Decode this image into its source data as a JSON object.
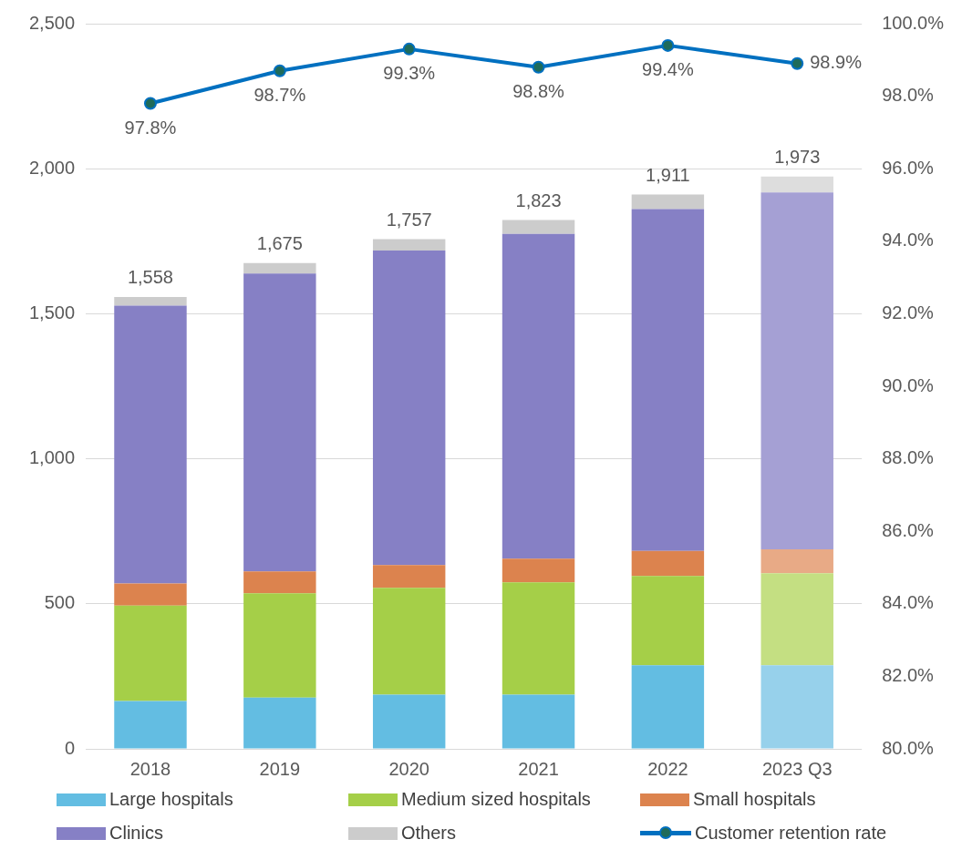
{
  "chart_data": {
    "type": "bar",
    "stacked": true,
    "categories": [
      "2018",
      "2019",
      "2020",
      "2021",
      "2022",
      "2023 Q3"
    ],
    "series": [
      {
        "name": "Large hospitals",
        "color": "#63bde2",
        "colors": [
          "#63bde2",
          "#63bde2",
          "#63bde2",
          "#63bde2",
          "#63bde2",
          "#97d1eb"
        ],
        "values": [
          165,
          177,
          187,
          187,
          288,
          288
        ]
      },
      {
        "name": "Medium sized hospitals",
        "color": "#a5cf48",
        "colors": [
          "#a5cf48",
          "#a5cf48",
          "#a5cf48",
          "#a5cf48",
          "#a5cf48",
          "#c4df82"
        ],
        "values": [
          329,
          359,
          368,
          387,
          308,
          317
        ]
      },
      {
        "name": "Small hospitals",
        "color": "#dc834e",
        "colors": [
          "#dc834e",
          "#dc834e",
          "#dc834e",
          "#dc834e",
          "#dc834e",
          "#e8aa86"
        ],
        "values": [
          76,
          76,
          79,
          82,
          86,
          83
        ]
      },
      {
        "name": "Clinics",
        "color": "#8680c5",
        "colors": [
          "#8680c5",
          "#8680c5",
          "#8680c5",
          "#8680c5",
          "#8680c5",
          "#a5a0d4"
        ],
        "values": [
          958,
          1027,
          1084,
          1119,
          1179,
          1230
        ]
      },
      {
        "name": "Others",
        "color": "#cccccc",
        "colors": [
          "#cccccc",
          "#cccccc",
          "#cccccc",
          "#cccccc",
          "#cccccc",
          "#dddddd"
        ],
        "values": [
          30,
          36,
          39,
          48,
          50,
          55
        ]
      },
      {
        "name": "Customer retention rate",
        "type": "line",
        "axis": "y2",
        "color": "#0070c0",
        "marker": "circle",
        "values": [
          97.8,
          98.7,
          99.3,
          98.8,
          99.4,
          98.9
        ],
        "value_labels": [
          "97.8%",
          "98.7%",
          "99.3%",
          "98.8%",
          "99.4%",
          "98.9%"
        ]
      }
    ],
    "totals": [
      "1,558",
      "1,675",
      "1,757",
      "1,823",
      "1,911",
      "1,973"
    ],
    "ylim": [
      0,
      2500
    ],
    "yticks": [
      0,
      {
        "value": 500,
        "label": "500"
      },
      {
        "value": 1000,
        "label": "1,000"
      },
      {
        "value": 1500,
        "label": "1,500"
      },
      {
        "value": 2000,
        "label": "2,000"
      },
      {
        "value": 2500,
        "label": "2,500"
      }
    ],
    "y2lim": [
      80,
      100
    ],
    "y2ticks": [
      {
        "value": 80,
        "label": "80.0%"
      },
      {
        "value": 82,
        "label": "82.0%"
      },
      {
        "value": 84,
        "label": "84.0%"
      },
      {
        "value": 86,
        "label": "86.0%"
      },
      {
        "value": 88,
        "label": "88.0%"
      },
      {
        "value": 90,
        "label": "90.0%"
      },
      {
        "value": 92,
        "label": "92.0%"
      },
      {
        "value": 94,
        "label": "94.0%"
      },
      {
        "value": 96,
        "label": "96.0%"
      },
      {
        "value": 98,
        "label": "98.0%"
      },
      {
        "value": 100,
        "label": "100.0%"
      }
    ],
    "grid": "y",
    "legend": "bottom"
  }
}
